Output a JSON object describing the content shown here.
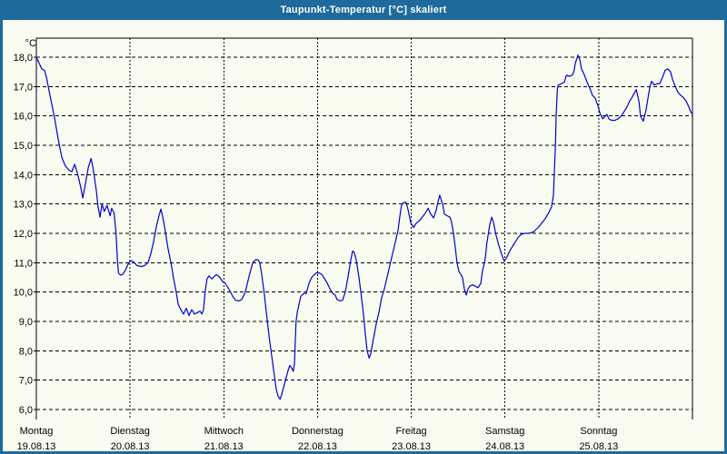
{
  "window": {
    "title": "Taupunkt-Temperatur [°C] skaliert"
  },
  "colors": {
    "titlebar": "#1e6a9c",
    "border": "#1e6a9c",
    "background": "#fafcf2",
    "grid": "#000000",
    "text": "#000000",
    "series_line": "#0000cc"
  },
  "chart_data": {
    "type": "line",
    "title": "Taupunkt-Temperatur [°C] skaliert",
    "grid": "dashed",
    "legend": "none",
    "y_axis": {
      "unit": "°C",
      "min": 6.0,
      "max": 18.0,
      "tick_values": [
        18,
        17,
        16,
        15,
        14,
        13,
        12,
        11,
        10,
        9,
        8,
        7,
        6
      ],
      "tick_labels": [
        "18,0",
        "17,0",
        "16,0",
        "15,0",
        "14,0",
        "13,0",
        "12,0",
        "11,0",
        "10,0",
        "9,0",
        "8,0",
        "7,0",
        "6,0"
      ]
    },
    "x_axis": {
      "range_hours": [
        0,
        168
      ],
      "tick_every_hours": 24,
      "days": [
        {
          "name": "Montag",
          "date": "19.08.13"
        },
        {
          "name": "Dienstag",
          "date": "20.08.13"
        },
        {
          "name": "Mittwoch",
          "date": "21.08.13"
        },
        {
          "name": "Donnerstag",
          "date": "22.08.13"
        },
        {
          "name": "Freitag",
          "date": "23.08.13"
        },
        {
          "name": "Samstag",
          "date": "24.08.13"
        },
        {
          "name": "Sonntag",
          "date": "25.08.13"
        }
      ]
    },
    "series": [
      {
        "name": "Taupunkt-Temperatur",
        "color": "#0000cc",
        "points": [
          [
            0.0,
            18.0
          ],
          [
            0.7,
            17.8
          ],
          [
            1.4,
            17.6
          ],
          [
            2.1,
            17.55
          ],
          [
            2.6,
            17.3
          ],
          [
            3.5,
            16.7
          ],
          [
            4.7,
            15.9
          ],
          [
            5.6,
            15.2
          ],
          [
            6.5,
            14.6
          ],
          [
            7.4,
            14.3
          ],
          [
            8.4,
            14.15
          ],
          [
            9.1,
            14.1
          ],
          [
            9.8,
            14.35
          ],
          [
            10.2,
            14.2
          ],
          [
            10.7,
            13.95
          ],
          [
            11.4,
            13.55
          ],
          [
            11.9,
            13.2
          ],
          [
            12.6,
            13.7
          ],
          [
            13.3,
            14.25
          ],
          [
            14.0,
            14.55
          ],
          [
            14.4,
            14.3
          ],
          [
            14.9,
            13.9
          ],
          [
            15.4,
            13.4
          ],
          [
            15.8,
            12.9
          ],
          [
            16.3,
            12.55
          ],
          [
            16.8,
            13.0
          ],
          [
            17.4,
            12.75
          ],
          [
            18.1,
            12.95
          ],
          [
            18.9,
            12.6
          ],
          [
            19.3,
            12.85
          ],
          [
            19.9,
            12.7
          ],
          [
            20.4,
            12.0
          ],
          [
            20.7,
            11.2
          ],
          [
            21.0,
            10.65
          ],
          [
            21.5,
            10.58
          ],
          [
            22.1,
            10.6
          ],
          [
            22.8,
            10.75
          ],
          [
            23.5,
            10.95
          ],
          [
            24.0,
            11.05
          ],
          [
            24.4,
            11.07
          ],
          [
            25.1,
            11.0
          ],
          [
            25.8,
            10.9
          ],
          [
            26.8,
            10.87
          ],
          [
            27.7,
            10.9
          ],
          [
            28.6,
            11.0
          ],
          [
            29.3,
            11.3
          ],
          [
            30.0,
            11.7
          ],
          [
            30.7,
            12.2
          ],
          [
            31.4,
            12.6
          ],
          [
            31.9,
            12.83
          ],
          [
            32.3,
            12.6
          ],
          [
            33.0,
            12.1
          ],
          [
            33.7,
            11.5
          ],
          [
            34.4,
            11.05
          ],
          [
            35.1,
            10.5
          ],
          [
            35.8,
            10.0
          ],
          [
            36.3,
            9.6
          ],
          [
            37.0,
            9.4
          ],
          [
            37.7,
            9.25
          ],
          [
            38.4,
            9.45
          ],
          [
            39.1,
            9.2
          ],
          [
            39.8,
            9.4
          ],
          [
            40.5,
            9.25
          ],
          [
            41.2,
            9.3
          ],
          [
            41.9,
            9.35
          ],
          [
            42.4,
            9.25
          ],
          [
            42.8,
            9.4
          ],
          [
            43.2,
            10.0
          ],
          [
            43.7,
            10.45
          ],
          [
            44.2,
            10.55
          ],
          [
            44.9,
            10.45
          ],
          [
            46.1,
            10.6
          ],
          [
            47.0,
            10.5
          ],
          [
            47.7,
            10.35
          ],
          [
            48.4,
            10.3
          ],
          [
            49.3,
            10.1
          ],
          [
            50.3,
            9.85
          ],
          [
            51.0,
            9.72
          ],
          [
            51.9,
            9.7
          ],
          [
            52.6,
            9.75
          ],
          [
            53.5,
            10.0
          ],
          [
            54.4,
            10.5
          ],
          [
            55.4,
            11.0
          ],
          [
            56.1,
            11.1
          ],
          [
            56.8,
            11.1
          ],
          [
            57.2,
            11.0
          ],
          [
            57.7,
            10.6
          ],
          [
            58.4,
            9.9
          ],
          [
            58.9,
            9.3
          ],
          [
            59.6,
            8.5
          ],
          [
            60.3,
            7.8
          ],
          [
            61.0,
            7.1
          ],
          [
            61.4,
            6.7
          ],
          [
            61.9,
            6.45
          ],
          [
            62.4,
            6.35
          ],
          [
            62.8,
            6.5
          ],
          [
            63.3,
            6.75
          ],
          [
            63.8,
            7.0
          ],
          [
            64.5,
            7.35
          ],
          [
            64.9,
            7.5
          ],
          [
            65.4,
            7.4
          ],
          [
            65.8,
            7.3
          ],
          [
            66.1,
            7.6
          ],
          [
            66.3,
            8.3
          ],
          [
            66.5,
            9.0
          ],
          [
            66.8,
            9.3
          ],
          [
            67.2,
            9.55
          ],
          [
            67.7,
            9.85
          ],
          [
            68.4,
            9.95
          ],
          [
            69.1,
            9.95
          ],
          [
            69.8,
            10.3
          ],
          [
            70.5,
            10.5
          ],
          [
            71.2,
            10.6
          ],
          [
            71.7,
            10.65
          ],
          [
            72.4,
            10.65
          ],
          [
            73.1,
            10.6
          ],
          [
            73.8,
            10.45
          ],
          [
            74.5,
            10.3
          ],
          [
            75.2,
            10.1
          ],
          [
            75.9,
            9.95
          ],
          [
            76.5,
            9.9
          ],
          [
            77.0,
            9.75
          ],
          [
            77.7,
            9.7
          ],
          [
            78.4,
            9.72
          ],
          [
            79.1,
            10.0
          ],
          [
            79.8,
            10.5
          ],
          [
            80.5,
            11.1
          ],
          [
            81.0,
            11.4
          ],
          [
            81.4,
            11.35
          ],
          [
            81.9,
            11.1
          ],
          [
            82.6,
            10.5
          ],
          [
            83.1,
            10.0
          ],
          [
            83.8,
            9.2
          ],
          [
            84.2,
            8.6
          ],
          [
            84.7,
            8.0
          ],
          [
            85.2,
            7.75
          ],
          [
            85.6,
            7.9
          ],
          [
            86.3,
            8.4
          ],
          [
            87.0,
            8.9
          ],
          [
            87.7,
            9.3
          ],
          [
            88.4,
            9.8
          ],
          [
            89.1,
            10.1
          ],
          [
            89.8,
            10.5
          ],
          [
            90.5,
            10.9
          ],
          [
            91.2,
            11.3
          ],
          [
            91.9,
            11.7
          ],
          [
            92.6,
            12.1
          ],
          [
            93.1,
            12.6
          ],
          [
            93.5,
            12.95
          ],
          [
            94.0,
            13.05
          ],
          [
            94.7,
            13.05
          ],
          [
            95.2,
            12.8
          ],
          [
            95.9,
            12.35
          ],
          [
            96.6,
            12.2
          ],
          [
            97.3,
            12.35
          ],
          [
            98.2,
            12.45
          ],
          [
            99.4,
            12.65
          ],
          [
            100.3,
            12.85
          ],
          [
            101.0,
            12.65
          ],
          [
            101.7,
            12.53
          ],
          [
            102.4,
            12.8
          ],
          [
            102.9,
            13.1
          ],
          [
            103.3,
            13.3
          ],
          [
            104.0,
            13.0
          ],
          [
            104.5,
            12.65
          ],
          [
            105.2,
            12.6
          ],
          [
            105.9,
            12.55
          ],
          [
            106.3,
            12.4
          ],
          [
            106.8,
            12.0
          ],
          [
            107.3,
            11.5
          ],
          [
            107.7,
            11.0
          ],
          [
            108.2,
            10.7
          ],
          [
            108.7,
            10.6
          ],
          [
            109.1,
            10.5
          ],
          [
            109.6,
            10.1
          ],
          [
            110.1,
            9.9
          ],
          [
            110.5,
            10.1
          ],
          [
            111.0,
            10.2
          ],
          [
            111.7,
            10.25
          ],
          [
            112.4,
            10.2
          ],
          [
            113.1,
            10.15
          ],
          [
            113.8,
            10.3
          ],
          [
            114.2,
            10.7
          ],
          [
            114.9,
            11.1
          ],
          [
            115.4,
            11.7
          ],
          [
            116.1,
            12.3
          ],
          [
            116.6,
            12.55
          ],
          [
            117.0,
            12.4
          ],
          [
            117.7,
            11.95
          ],
          [
            118.4,
            11.6
          ],
          [
            119.1,
            11.3
          ],
          [
            119.8,
            11.05
          ],
          [
            120.5,
            11.2
          ],
          [
            121.2,
            11.4
          ],
          [
            121.9,
            11.55
          ],
          [
            122.6,
            11.7
          ],
          [
            123.3,
            11.85
          ],
          [
            124.0,
            11.95
          ],
          [
            125.0,
            12.0
          ],
          [
            126.1,
            12.0
          ],
          [
            127.3,
            12.05
          ],
          [
            128.5,
            12.2
          ],
          [
            129.4,
            12.35
          ],
          [
            130.3,
            12.5
          ],
          [
            131.2,
            12.7
          ],
          [
            131.9,
            12.9
          ],
          [
            132.4,
            13.3
          ],
          [
            132.6,
            14.0
          ],
          [
            132.9,
            15.0
          ],
          [
            133.1,
            16.0
          ],
          [
            133.4,
            16.9
          ],
          [
            133.6,
            17.05
          ],
          [
            134.5,
            17.1
          ],
          [
            135.2,
            17.15
          ],
          [
            135.7,
            17.38
          ],
          [
            136.6,
            17.35
          ],
          [
            137.3,
            17.4
          ],
          [
            137.7,
            17.55
          ],
          [
            138.0,
            17.8
          ],
          [
            138.7,
            18.07
          ],
          [
            139.2,
            17.9
          ],
          [
            139.6,
            17.6
          ],
          [
            140.3,
            17.4
          ],
          [
            141.0,
            17.15
          ],
          [
            141.7,
            16.95
          ],
          [
            142.4,
            16.7
          ],
          [
            143.1,
            16.6
          ],
          [
            143.8,
            16.35
          ],
          [
            144.3,
            16.1
          ],
          [
            145.0,
            15.9
          ],
          [
            145.7,
            16.0
          ],
          [
            146.1,
            16.05
          ],
          [
            146.6,
            15.9
          ],
          [
            147.3,
            15.85
          ],
          [
            148.2,
            15.85
          ],
          [
            148.9,
            15.9
          ],
          [
            149.8,
            16.0
          ],
          [
            150.5,
            16.15
          ],
          [
            151.2,
            16.3
          ],
          [
            151.9,
            16.5
          ],
          [
            152.6,
            16.65
          ],
          [
            153.6,
            16.9
          ],
          [
            154.3,
            16.5
          ],
          [
            154.7,
            16.0
          ],
          [
            155.4,
            15.82
          ],
          [
            156.1,
            16.2
          ],
          [
            156.6,
            16.6
          ],
          [
            157.1,
            17.0
          ],
          [
            157.5,
            17.18
          ],
          [
            158.2,
            17.05
          ],
          [
            158.9,
            17.1
          ],
          [
            159.6,
            17.1
          ],
          [
            160.3,
            17.3
          ],
          [
            161.0,
            17.55
          ],
          [
            161.7,
            17.6
          ],
          [
            162.4,
            17.5
          ],
          [
            162.9,
            17.25
          ],
          [
            163.6,
            17.0
          ],
          [
            164.3,
            16.8
          ],
          [
            165.0,
            16.7
          ],
          [
            165.7,
            16.62
          ],
          [
            166.4,
            16.5
          ],
          [
            167.1,
            16.3
          ],
          [
            167.5,
            16.15
          ],
          [
            168.0,
            16.05
          ]
        ]
      }
    ]
  }
}
